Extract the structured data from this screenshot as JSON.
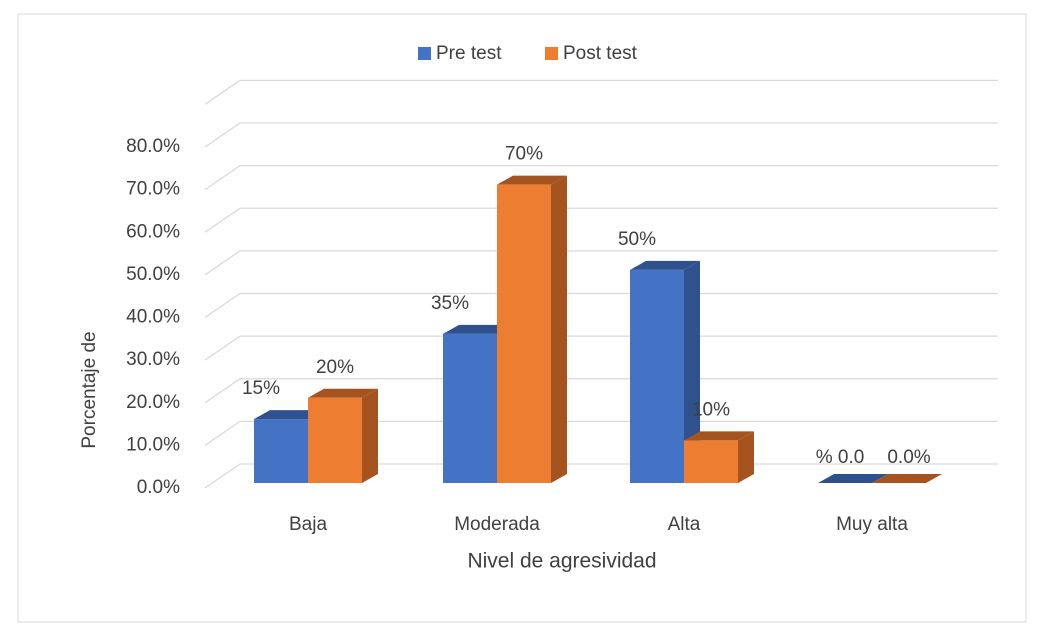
{
  "chart_data": {
    "type": "bar3d",
    "categories": [
      "Baja",
      "Moderada",
      "Alta",
      "Muy alta"
    ],
    "series": [
      {
        "name": "Pre test",
        "color": "#4472c4",
        "side_color": "#2f528f",
        "values": [
          15,
          35,
          50,
          0
        ],
        "value_labels": [
          "15%",
          "35%",
          "50%",
          "% 0.0"
        ]
      },
      {
        "name": "Post test",
        "color": "#ed7d31",
        "side_color": "#a5541f",
        "values": [
          20,
          70,
          10,
          0
        ],
        "value_labels": [
          "20%",
          "70%",
          "10%",
          "0.0%"
        ]
      }
    ],
    "ylim": [
      0,
      90
    ],
    "yticks": [
      {
        "value": 0,
        "label": "0.0%"
      },
      {
        "value": 10,
        "label": "10.0%"
      },
      {
        "value": 20,
        "label": "20.0%"
      },
      {
        "value": 30,
        "label": "30.0%"
      },
      {
        "value": 40,
        "label": "40.0%"
      },
      {
        "value": 50,
        "label": "50.0%"
      },
      {
        "value": 60,
        "label": "60.0%"
      },
      {
        "value": 70,
        "label": "70.0%"
      },
      {
        "value": 80,
        "label": "80.0%"
      }
    ],
    "y_label": "Porcentaje de",
    "x_label": "Nivel de agresividad",
    "grid": true,
    "legend": "top"
  }
}
